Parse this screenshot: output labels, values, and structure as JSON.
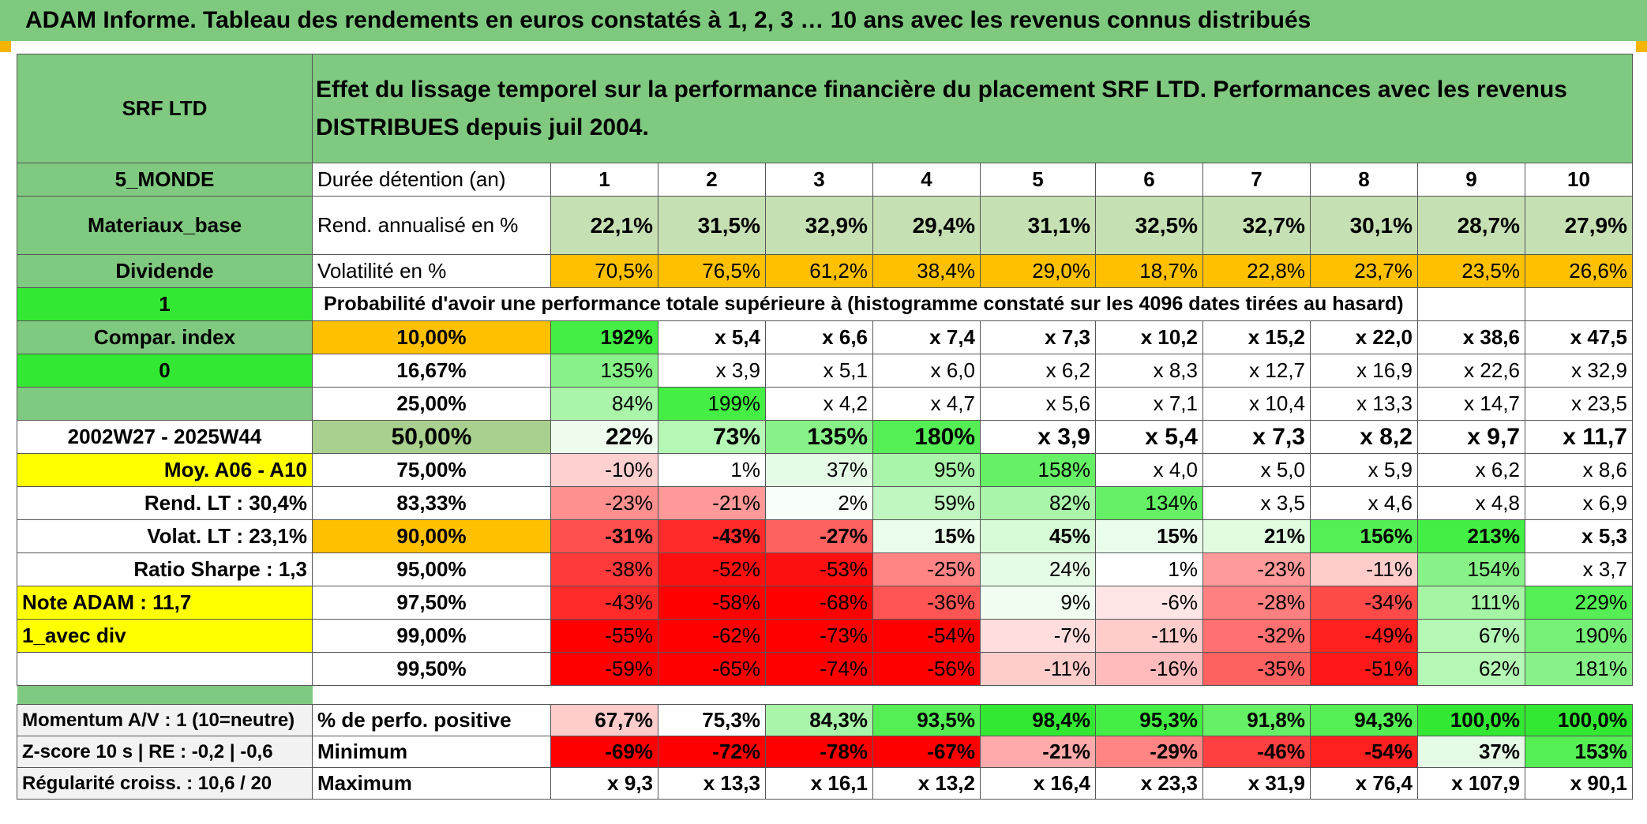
{
  "title": "ADAM Informe. Tableau des rendements en euros constatés à 1, 2, 3 … 10 ans avec les revenus connus distribués",
  "header": {
    "fund": "SRF LTD",
    "description": "Effet du lissage temporel sur la performance financière du placement SRF LTD. Performances avec les revenus DISTRIBUES depuis juil 2004."
  },
  "left": {
    "zone": "5_MONDE",
    "sector": "Materiaux_base",
    "dividend": "Dividende",
    "one": "1",
    "compar": "Compar. index",
    "zero": "0",
    "period": "2002W27 - 2025W44",
    "moy": "Moy. A06 - A10",
    "rend_lt": "Rend. LT :   30,4%",
    "volat_lt": "Volat. LT :   23,1%",
    "sharpe": "Ratio Sharpe :    1,3",
    "note": "Note ADAM : 11,7",
    "div": "1_avec div",
    "momentum": "Momentum A/V : 1 (10=neutre)",
    "zscore": "Z-score 10 s | RE : -0,2 | -0,6",
    "regularite": "Régularité croiss. : 10,6 / 20"
  },
  "rows": {
    "duree": {
      "label": "Durée détention (an)",
      "cols": [
        "1",
        "2",
        "3",
        "4",
        "5",
        "6",
        "7",
        "8",
        "9",
        "10"
      ]
    },
    "rend": {
      "label": "Rend. annualisé en %",
      "values": [
        "22,1%",
        "31,5%",
        "32,9%",
        "29,4%",
        "31,1%",
        "32,5%",
        "32,7%",
        "30,1%",
        "28,7%",
        "27,9%"
      ]
    },
    "vol": {
      "label": "Volatilité en %",
      "values": [
        "70,5%",
        "76,5%",
        "61,2%",
        "38,4%",
        "29,0%",
        "18,7%",
        "22,8%",
        "23,7%",
        "23,5%",
        "26,6%"
      ]
    },
    "proba_label": "Probabilité d'avoir une performance totale supérieure à (histogramme constaté sur les 4096 dates tirées au hasard)",
    "quantiles": [
      {
        "q": "10,00%",
        "values": [
          "192%",
          "x 5,4",
          "x 6,6",
          "x 7,4",
          "x 7,3",
          "x 10,2",
          "x 15,2",
          "x 22,0",
          "x 38,6",
          "x 47,5"
        ]
      },
      {
        "q": "16,67%",
        "values": [
          "135%",
          "x 3,9",
          "x 5,1",
          "x 6,0",
          "x 6,2",
          "x 8,3",
          "x 12,7",
          "x 16,9",
          "x 22,6",
          "x 32,9"
        ]
      },
      {
        "q": "25,00%",
        "values": [
          "84%",
          "199%",
          "x 4,2",
          "x 4,7",
          "x 5,6",
          "x 7,1",
          "x 10,4",
          "x 13,3",
          "x 14,7",
          "x 23,5"
        ]
      },
      {
        "q": "50,00%",
        "values": [
          "22%",
          "73%",
          "135%",
          "180%",
          "x 3,9",
          "x 5,4",
          "x 7,3",
          "x 8,2",
          "x 9,7",
          "x 11,7"
        ]
      },
      {
        "q": "75,00%",
        "values": [
          "-10%",
          "1%",
          "37%",
          "95%",
          "158%",
          "x 4,0",
          "x 5,0",
          "x 5,9",
          "x 6,2",
          "x 8,6"
        ]
      },
      {
        "q": "83,33%",
        "values": [
          "-23%",
          "-21%",
          "2%",
          "59%",
          "82%",
          "134%",
          "x 3,5",
          "x 4,6",
          "x 4,8",
          "x 6,9"
        ]
      },
      {
        "q": "90,00%",
        "values": [
          "-31%",
          "-43%",
          "-27%",
          "15%",
          "45%",
          "15%",
          "21%",
          "156%",
          "213%",
          "x 5,3"
        ]
      },
      {
        "q": "95,00%",
        "values": [
          "-38%",
          "-52%",
          "-53%",
          "-25%",
          "24%",
          "1%",
          "-23%",
          "-11%",
          "154%",
          "x 3,7"
        ]
      },
      {
        "q": "97,50%",
        "values": [
          "-43%",
          "-58%",
          "-68%",
          "-36%",
          "9%",
          "-6%",
          "-28%",
          "-34%",
          "111%",
          "229%"
        ]
      },
      {
        "q": "99,00%",
        "values": [
          "-55%",
          "-62%",
          "-73%",
          "-54%",
          "-7%",
          "-11%",
          "-32%",
          "-49%",
          "67%",
          "190%"
        ]
      },
      {
        "q": "99,50%",
        "values": [
          "-59%",
          "-65%",
          "-74%",
          "-56%",
          "-11%",
          "-16%",
          "-35%",
          "-51%",
          "62%",
          "181%"
        ]
      }
    ],
    "positive": {
      "label": "% de perfo. positive",
      "values": [
        "67,7%",
        "75,3%",
        "84,3%",
        "93,5%",
        "98,4%",
        "95,3%",
        "91,8%",
        "94,3%",
        "100,0%",
        "100,0%"
      ]
    },
    "minimum": {
      "label": "Minimum",
      "values": [
        "-69%",
        "-72%",
        "-78%",
        "-67%",
        "-21%",
        "-29%",
        "-46%",
        "-54%",
        "37%",
        "153%"
      ]
    },
    "maximum": {
      "label": "Maximum",
      "values": [
        "x 9,3",
        "x 13,3",
        "x 16,1",
        "x 13,2",
        "x 16,4",
        "x 23,3",
        "x 31,9",
        "x 76,4",
        "x 107,9",
        "x 90,1"
      ]
    }
  },
  "colors": {
    "header_green": "#80c980",
    "bright_green": "#33e833",
    "orange": "#ffc000",
    "yellow": "#ffff00",
    "red_text": "#e01010"
  },
  "cell_colors": {
    "rend": [
      "#c6e0b4",
      "#c6e0b4",
      "#c6e0b4",
      "#c6e0b4",
      "#c6e0b4",
      "#c6e0b4",
      "#c6e0b4",
      "#c6e0b4",
      "#c6e0b4",
      "#c6e0b4"
    ],
    "vol": [
      "#ffc000",
      "#ffc000",
      "#ffc000",
      "#ffc000",
      "#ffc000",
      "#ffc000",
      "#ffc000",
      "#ffc000",
      "#ffc000",
      "#ffc000"
    ],
    "quantiles": [
      [
        "#44ee44",
        "#ffffff",
        "#ffffff",
        "#ffffff",
        "#ffffff",
        "#ffffff",
        "#ffffff",
        "#ffffff",
        "#ffffff",
        "#ffffff"
      ],
      [
        "#88f288",
        "#ffffff",
        "#ffffff",
        "#ffffff",
        "#ffffff",
        "#ffffff",
        "#ffffff",
        "#ffffff",
        "#ffffff",
        "#ffffff"
      ],
      [
        "#aaf5aa",
        "#44ee44",
        "#ffffff",
        "#ffffff",
        "#ffffff",
        "#ffffff",
        "#ffffff",
        "#ffffff",
        "#ffffff",
        "#ffffff"
      ],
      [
        "#eefcee",
        "#b5f7b5",
        "#88f288",
        "#55ee55",
        "#ffffff",
        "#ffffff",
        "#ffffff",
        "#ffffff",
        "#ffffff",
        "#ffffff"
      ],
      [
        "#ffd0d0",
        "#ffffff",
        "#e5fbe5",
        "#aaf5aa",
        "#66f066",
        "#ffffff",
        "#ffffff",
        "#ffffff",
        "#ffffff",
        "#ffffff"
      ],
      [
        "#ff9090",
        "#ff9898",
        "#f8fef8",
        "#c0f7c0",
        "#aaf5aa",
        "#66f066",
        "#ffffff",
        "#ffffff",
        "#ffffff",
        "#ffffff"
      ],
      [
        "#ff5050",
        "#ff2a2a",
        "#ff6060",
        "#eafcea",
        "#d5fad5",
        "#eafcea",
        "#e0fbe0",
        "#55ee55",
        "#44ee44",
        "#ffffff"
      ],
      [
        "#ff3a3a",
        "#ff1010",
        "#ff1010",
        "#ff8585",
        "#e5fbe5",
        "#ffffff",
        "#ff9a9a",
        "#ffcccc",
        "#88f288",
        "#ffffff"
      ],
      [
        "#ff2a2a",
        "#ff0000",
        "#ff0000",
        "#ff5555",
        "#f0fdf0",
        "#ffe5e5",
        "#ff8080",
        "#ff4a4a",
        "#a5f5a5",
        "#55ee55"
      ],
      [
        "#ff0000",
        "#ff0000",
        "#ff0000",
        "#ff0000",
        "#ffdddd",
        "#ffcccc",
        "#ff7070",
        "#ff2020",
        "#b5f7b5",
        "#77f077"
      ],
      [
        "#ff0000",
        "#ff0000",
        "#ff0000",
        "#ff0000",
        "#ffcccc",
        "#ffbbbb",
        "#ff6060",
        "#ff1818",
        "#b5f7b5",
        "#88f288"
      ]
    ],
    "positive": [
      "#ffcccc",
      "#ffffff",
      "#aaf5aa",
      "#55ee55",
      "#33e833",
      "#44ee44",
      "#66f066",
      "#55ee55",
      "#33e833",
      "#33e833"
    ],
    "minimum": [
      "#ff0000",
      "#ff0000",
      "#ff0000",
      "#ff0000",
      "#ffaaaa",
      "#ff8585",
      "#ff4040",
      "#ff2020",
      "#e5fbe5",
      "#55ee55"
    ],
    "maximum": [
      "#ffffff",
      "#ffffff",
      "#ffffff",
      "#ffffff",
      "#ffffff",
      "#ffffff",
      "#ffffff",
      "#ffffff",
      "#ffffff",
      "#ffffff"
    ]
  }
}
